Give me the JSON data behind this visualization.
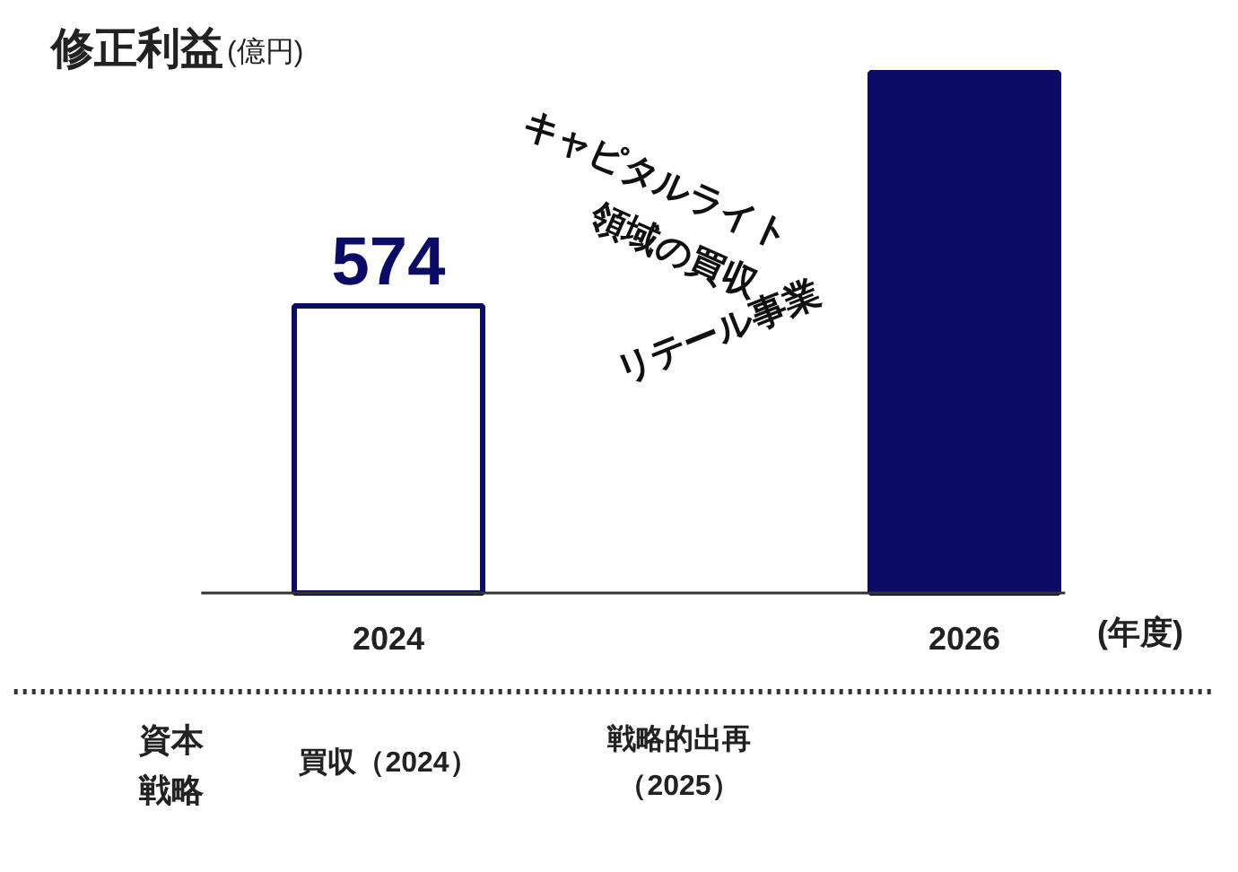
{
  "chart_data": {
    "type": "bar",
    "title": "修正利益",
    "subtitle": "(億円)",
    "categories": [
      "2024",
      "2026"
    ],
    "values": [
      574,
      1040
    ],
    "color": "#0c0c66",
    "colors": [
      "#ffffff",
      "#0c0c66"
    ],
    "value_labels": [
      "574",
      null
    ],
    "annotations": [
      "キャピタルライト",
      "領域の買収",
      "リテール事業",
      "(年度)",
      "資本",
      "戦略",
      "買収（2024）",
      "戦略的出再",
      "（2025）"
    ]
  }
}
